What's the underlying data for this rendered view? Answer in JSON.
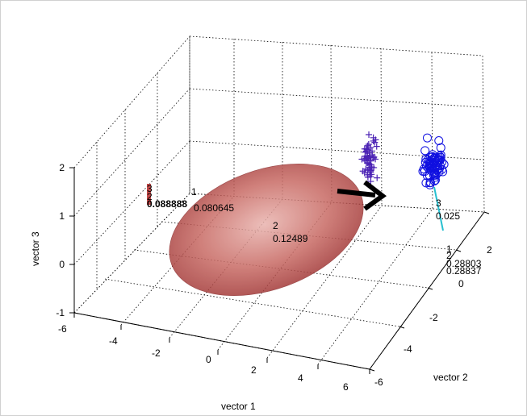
{
  "chart_data": {
    "type": "scatter",
    "title": "",
    "xlabel": "vector 1",
    "ylabel": "vector 2",
    "zlabel": "vector 3",
    "xlim": [
      -6,
      6
    ],
    "ylim": [
      -6,
      2
    ],
    "zlim": [
      -1,
      2
    ],
    "x_ticks": [
      "-6",
      "-4",
      "-2",
      "0",
      "2",
      "4",
      "6"
    ],
    "y_ticks": [
      "-6",
      "-4",
      "-2",
      "0",
      "2"
    ],
    "z_ticks": [
      "-1",
      "0",
      "1",
      "2"
    ],
    "grid": true,
    "colors": {
      "ellipsoid": "#c44a4a",
      "cluster_plus": "#4b22b4",
      "cluster_circle": "#1010e0",
      "arrow": "#000000",
      "line": "#27c0d0"
    },
    "series": [
      {
        "marker": "plus",
        "x": 2.4,
        "y": 0.2,
        "z": 1.1,
        "spread": [
          0.4,
          0.3,
          0.6
        ],
        "count": 60
      },
      {
        "marker": "circle",
        "x": 4.9,
        "y": 0.3,
        "z": 1.2,
        "spread": [
          0.5,
          0.3,
          0.6
        ],
        "count": 70
      }
    ],
    "annotations": {
      "left_group": [
        "3",
        "1",
        "2",
        "0.088888",
        "0.080645"
      ],
      "center": [
        "2",
        "0.12489"
      ],
      "right": [
        "3",
        "0.025"
      ],
      "bottom_right": [
        "1",
        "2",
        "0.28803",
        "0.28837"
      ]
    }
  }
}
